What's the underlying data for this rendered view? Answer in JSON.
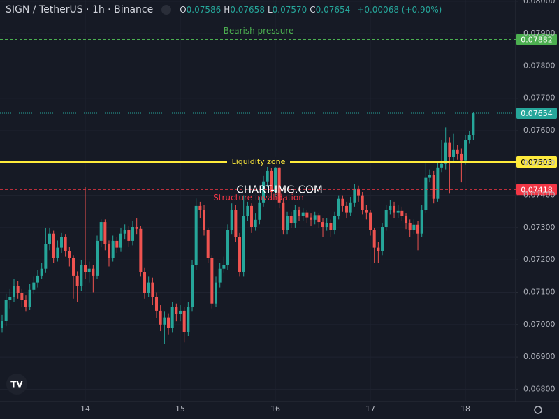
{
  "header": {
    "symbol": "SIGN / TetherUS · 1h · Binance",
    "ohlc": [
      {
        "key": "O",
        "value": "0.07586"
      },
      {
        "key": "H",
        "value": "0.07658"
      },
      {
        "key": "L",
        "value": "0.07570"
      },
      {
        "key": "C",
        "value": "0.07654"
      }
    ],
    "change": "+0.00068 (+0.90%)"
  },
  "watermark": "CHART-IMG.COM",
  "chart_data": {
    "type": "candlestick",
    "categories": [
      null,
      null,
      null,
      null,
      null,
      null,
      null,
      null,
      null,
      null,
      null,
      null,
      null,
      null,
      null,
      null,
      null,
      null,
      null,
      null,
      null,
      "14",
      null,
      null,
      null,
      null,
      null,
      null,
      null,
      null,
      null,
      null,
      null,
      null,
      null,
      null,
      null,
      null,
      null,
      null,
      null,
      null,
      null,
      null,
      null,
      "15",
      null,
      null,
      null,
      null,
      null,
      null,
      null,
      null,
      null,
      null,
      null,
      null,
      null,
      null,
      null,
      null,
      null,
      null,
      null,
      null,
      null,
      null,
      null,
      "16",
      null,
      null,
      null,
      null,
      null,
      null,
      null,
      null,
      null,
      null,
      null,
      null,
      null,
      null,
      null,
      null,
      null,
      null,
      null,
      null,
      null,
      null,
      null,
      "17",
      null,
      null,
      null,
      null,
      null,
      null,
      null,
      null,
      null,
      null,
      null,
      null,
      null,
      null,
      null,
      null,
      null,
      null,
      null,
      null,
      null,
      null,
      null,
      "18",
      null,
      null
    ],
    "open": [
      0.0699,
      0.07011,
      0.07076,
      0.07086,
      0.07119,
      0.07097,
      0.07076,
      0.07054,
      0.07108,
      0.0713,
      0.07151,
      0.07173,
      0.07248,
      0.07281,
      0.07205,
      0.07238,
      0.0727,
      0.07227,
      0.07205,
      0.07151,
      0.07119,
      0.07184,
      0.07162,
      0.07173,
      0.07151,
      0.07259,
      0.07317,
      0.07248,
      0.07205,
      0.07259,
      0.07238,
      0.07281,
      0.07292,
      0.07259,
      0.07302,
      0.07296,
      0.07162,
      0.07097,
      0.0713,
      0.07086,
      0.07043,
      0.07,
      0.07022,
      0.06989,
      0.07054,
      0.07032,
      0.07043,
      0.06978,
      0.07054,
      0.07184,
      0.07367,
      0.07356,
      0.07292,
      0.07205,
      0.07065,
      0.0713,
      0.07173,
      0.07184,
      0.07292,
      0.07356,
      0.0727,
      0.07162,
      0.07335,
      0.07367,
      0.07302,
      0.07324,
      0.07378,
      0.07443,
      0.07475,
      0.0741,
      0.07486,
      0.07378,
      0.07292,
      0.07335,
      0.07313,
      0.07356,
      0.07335,
      0.07346,
      0.07331,
      0.07324,
      0.07338,
      0.07317,
      0.07302,
      0.07313,
      0.07292,
      0.07335,
      0.07389,
      0.07367,
      0.07346,
      0.07378,
      0.07421,
      0.074,
      0.07356,
      0.07346,
      0.07292,
      0.07238,
      0.07227,
      0.07302,
      0.07356,
      0.07367,
      0.07346,
      0.07352,
      0.07335,
      0.07313,
      0.07292,
      0.07309,
      0.07281,
      0.07356,
      0.07454,
      0.07464,
      0.07389,
      0.07486,
      0.07497,
      0.07562,
      0.07518,
      0.0754,
      0.07529,
      0.07508,
      0.07572,
      0.07586
    ],
    "high": [
      0.0703,
      0.07095,
      0.0711,
      0.0714,
      0.07135,
      0.0711,
      0.0709,
      0.07125,
      0.0715,
      0.0717,
      0.0719,
      0.073,
      0.073,
      0.0729,
      0.0726,
      0.07285,
      0.0728,
      0.0724,
      0.07215,
      0.07165,
      0.072,
      0.07425,
      0.07195,
      0.07185,
      0.07275,
      0.07325,
      0.07325,
      0.0726,
      0.07275,
      0.0727,
      0.073,
      0.0731,
      0.07305,
      0.0732,
      0.0733,
      0.07305,
      0.07175,
      0.0715,
      0.07145,
      0.071,
      0.0706,
      0.0704,
      0.07035,
      0.0707,
      0.07065,
      0.0706,
      0.07055,
      0.0707,
      0.072,
      0.0739,
      0.0738,
      0.0737,
      0.073,
      0.07215,
      0.0715,
      0.0719,
      0.0721,
      0.0731,
      0.07375,
      0.0737,
      0.07285,
      0.074,
      0.0738,
      0.07375,
      0.07345,
      0.07395,
      0.0746,
      0.0749,
      0.07485,
      0.075,
      0.075,
      0.0739,
      0.0735,
      0.0735,
      0.0737,
      0.07365,
      0.0736,
      0.07355,
      0.07345,
      0.0735,
      0.07345,
      0.0733,
      0.0733,
      0.07325,
      0.0735,
      0.074,
      0.074,
      0.0738,
      0.07395,
      0.07435,
      0.0743,
      0.0741,
      0.0737,
      0.07355,
      0.073,
      0.07255,
      0.07315,
      0.0737,
      0.07385,
      0.0738,
      0.0737,
      0.07365,
      0.07345,
      0.07325,
      0.07325,
      0.0732,
      0.0737,
      0.07505,
      0.0748,
      0.07475,
      0.075,
      0.0757,
      0.0761,
      0.0758,
      0.0759,
      0.07555,
      0.07545,
      0.07585,
      0.076,
      0.07658
    ],
    "low": [
      0.06975,
      0.06995,
      0.0705,
      0.0707,
      0.0708,
      0.07055,
      0.0704,
      0.07045,
      0.07095,
      0.07115,
      0.0714,
      0.0716,
      0.0723,
      0.0719,
      0.07195,
      0.0722,
      0.0721,
      0.0718,
      0.0708,
      0.0707,
      0.07105,
      0.0714,
      0.0713,
      0.071,
      0.0714,
      0.0724,
      0.0723,
      0.0718,
      0.07195,
      0.0722,
      0.07225,
      0.07265,
      0.0724,
      0.07245,
      0.0728,
      0.0715,
      0.0708,
      0.07085,
      0.0706,
      0.0702,
      0.0698,
      0.0694,
      0.0697,
      0.06975,
      0.0701,
      0.0701,
      0.06945,
      0.06965,
      0.0704,
      0.0717,
      0.0733,
      0.07275,
      0.0719,
      0.0705,
      0.07055,
      0.07115,
      0.0716,
      0.0717,
      0.0728,
      0.07255,
      0.0715,
      0.0715,
      0.0732,
      0.07285,
      0.0729,
      0.0731,
      0.07365,
      0.07425,
      0.07395,
      0.07395,
      0.0736,
      0.0728,
      0.0728,
      0.073,
      0.073,
      0.0732,
      0.0732,
      0.07315,
      0.07305,
      0.0731,
      0.073,
      0.0727,
      0.0729,
      0.0727,
      0.0728,
      0.07325,
      0.0735,
      0.0733,
      0.07335,
      0.07365,
      0.0738,
      0.0734,
      0.07325,
      0.07275,
      0.0719,
      0.0719,
      0.07215,
      0.0729,
      0.0734,
      0.0733,
      0.0733,
      0.0732,
      0.07295,
      0.0727,
      0.0728,
      0.0723,
      0.0727,
      0.07345,
      0.0744,
      0.07375,
      0.0738,
      0.0747,
      0.0748,
      0.07405,
      0.07505,
      0.0751,
      0.0744,
      0.07495,
      0.0756,
      0.0757
    ],
    "close": [
      0.07011,
      0.07076,
      0.07086,
      0.07119,
      0.07097,
      0.07076,
      0.07054,
      0.07108,
      0.0713,
      0.07151,
      0.07173,
      0.07248,
      0.07281,
      0.07205,
      0.07238,
      0.0727,
      0.07227,
      0.07205,
      0.07151,
      0.07119,
      0.07184,
      0.07162,
      0.07173,
      0.07151,
      0.07259,
      0.07317,
      0.07248,
      0.07205,
      0.07259,
      0.07238,
      0.07281,
      0.07292,
      0.07259,
      0.07302,
      0.07296,
      0.07162,
      0.07097,
      0.0713,
      0.07086,
      0.07043,
      0.07,
      0.07022,
      0.06989,
      0.07054,
      0.07032,
      0.07043,
      0.06978,
      0.07054,
      0.07184,
      0.07367,
      0.07356,
      0.07292,
      0.07205,
      0.07065,
      0.0713,
      0.07173,
      0.07184,
      0.07292,
      0.07356,
      0.0727,
      0.07162,
      0.07335,
      0.07367,
      0.07302,
      0.07324,
      0.07378,
      0.07443,
      0.07475,
      0.0741,
      0.07486,
      0.07378,
      0.07292,
      0.07335,
      0.07313,
      0.07356,
      0.07335,
      0.07346,
      0.07331,
      0.07324,
      0.07338,
      0.07317,
      0.07302,
      0.07313,
      0.07292,
      0.07335,
      0.07389,
      0.07367,
      0.07346,
      0.07378,
      0.07421,
      0.074,
      0.07356,
      0.07346,
      0.07292,
      0.07238,
      0.07227,
      0.07302,
      0.07356,
      0.07367,
      0.07346,
      0.07352,
      0.07335,
      0.07313,
      0.07292,
      0.07309,
      0.07281,
      0.07356,
      0.07454,
      0.07464,
      0.07389,
      0.07486,
      0.07497,
      0.07562,
      0.07518,
      0.0754,
      0.07529,
      0.07508,
      0.07572,
      0.07586,
      0.07654
    ],
    "up_color": "#26a69a",
    "down_color": "#ef5350",
    "ylim": [
      0.06762,
      0.08004
    ],
    "yticks": [
      {
        "value": 0.068,
        "label": "0.06800"
      },
      {
        "value": 0.069,
        "label": "0.06900"
      },
      {
        "value": 0.07,
        "label": "0.07000"
      },
      {
        "value": 0.071,
        "label": "0.07100"
      },
      {
        "value": 0.072,
        "label": "0.07200"
      },
      {
        "value": 0.073,
        "label": "0.07300"
      },
      {
        "value": 0.074,
        "label": "0.07400"
      },
      {
        "value": 0.075,
        "label": "0.07500"
      },
      {
        "value": 0.076,
        "label": "0.07600"
      },
      {
        "value": 0.077,
        "label": "0.07700"
      },
      {
        "value": 0.078,
        "label": "0.07800"
      },
      {
        "value": 0.079,
        "label": "0.07900"
      },
      {
        "value": 0.08,
        "label": "0.08000"
      }
    ],
    "grid": true,
    "levels": [
      {
        "label": "Bearish pressure",
        "value": 0.07882,
        "color": "#4caf50",
        "style": "dashed",
        "label_position": "above"
      },
      {
        "label": "Liquidity zone",
        "value": 0.07503,
        "color": "#ffeb3b",
        "style": "solid",
        "label_position": "on"
      },
      {
        "label": "Structure invalidation",
        "value": 0.07418,
        "color": "#f23645",
        "style": "dashed",
        "label_position": "below"
      }
    ]
  }
}
